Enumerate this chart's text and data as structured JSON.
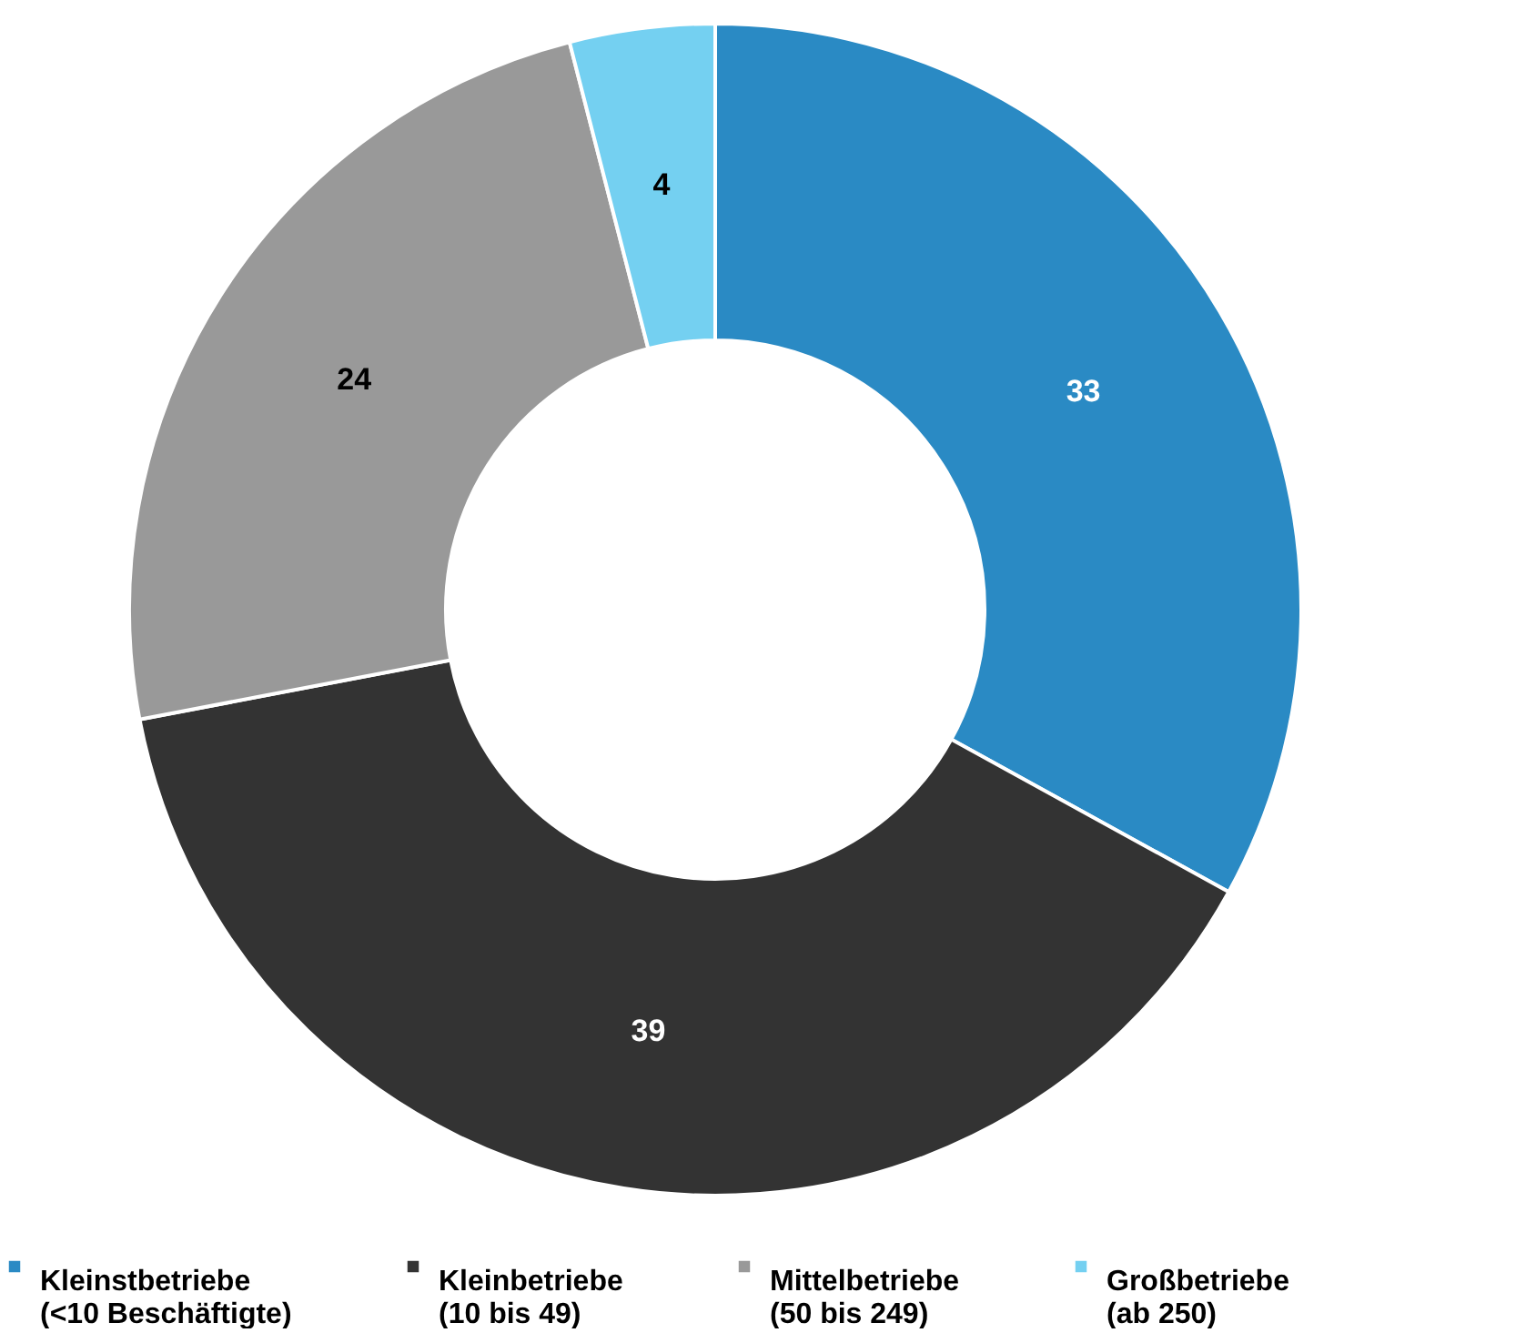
{
  "chart_data": {
    "type": "donut",
    "categories": [
      "Kleinstbetriebe\n(<10 Beschäftigte)",
      "Kleinbetriebe\n(10 bis 49)",
      "Mittelbetriebe\n(50 bis 249)",
      "Großbetriebe\n(ab 250)"
    ],
    "values": [
      33,
      39,
      24,
      4
    ],
    "colors": [
      "#2a8ac4",
      "#333333",
      "#999999",
      "#74d0f1"
    ],
    "data_labels": true,
    "legend": "bottom"
  }
}
